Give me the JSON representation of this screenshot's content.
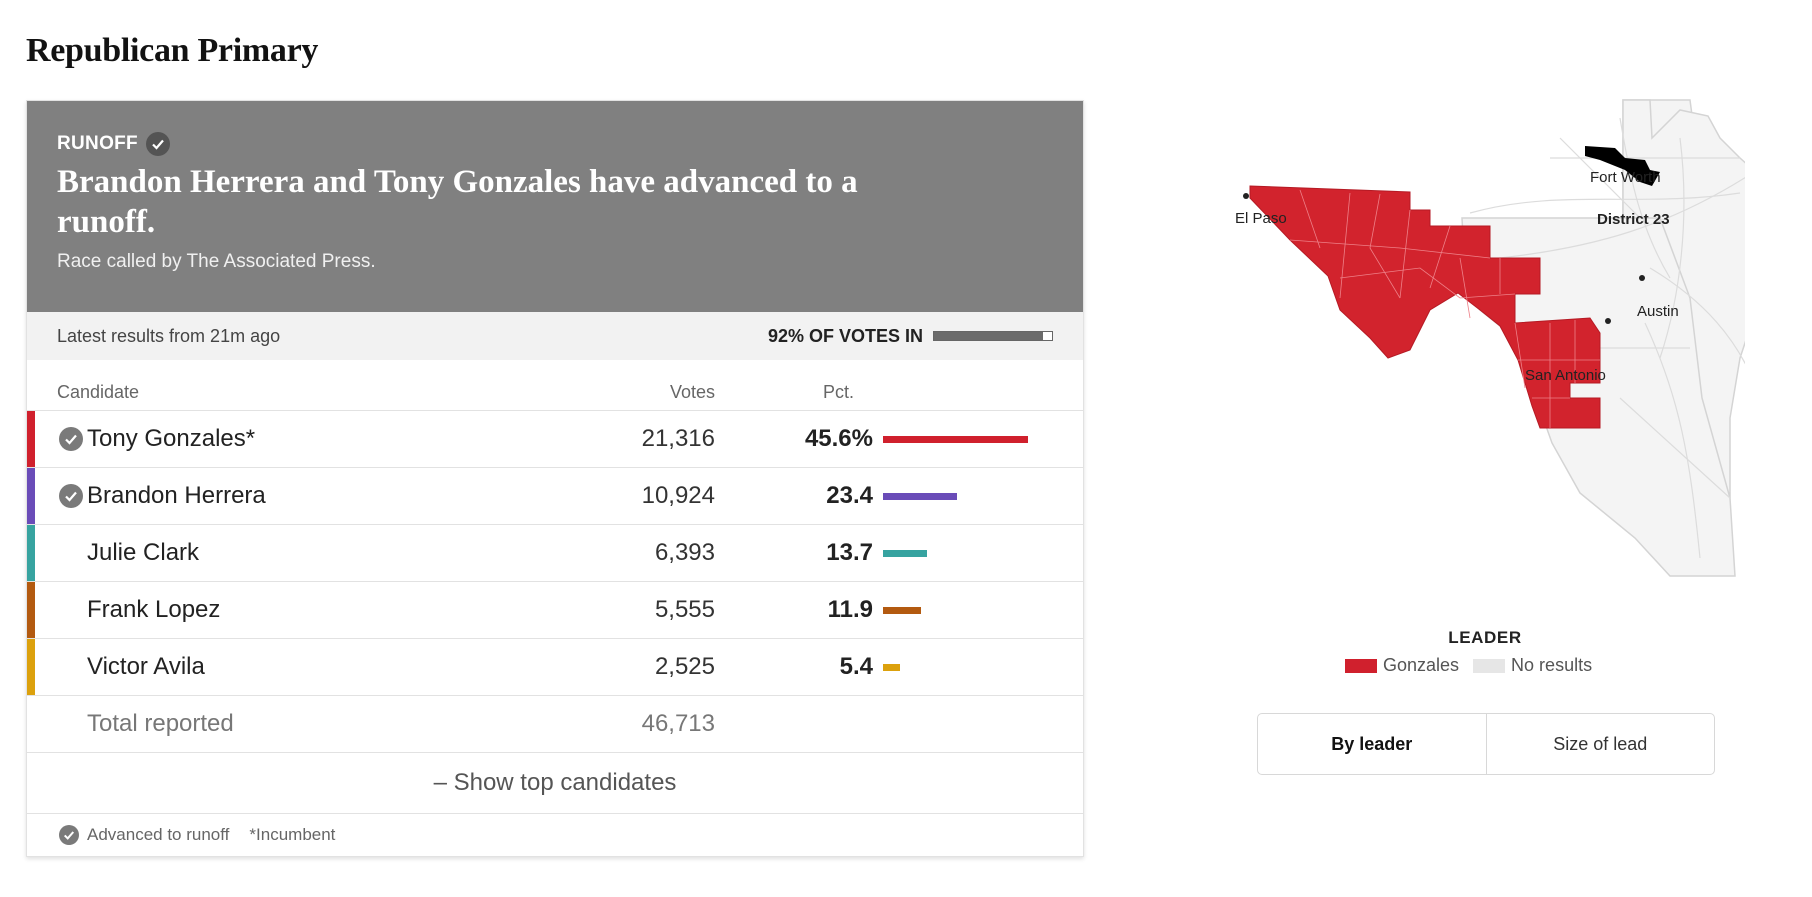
{
  "page_title": "Republican Primary",
  "banner": {
    "tag": "RUNOFF",
    "headline": "Brandon Herrera and Tony Gonzales have advanced to a runoff.",
    "subtext": "Race called by The Associated Press."
  },
  "status": {
    "latest": "Latest results from 21m ago",
    "votes_in_label": "92% OF VOTES IN",
    "votes_in_fraction": 0.92
  },
  "table": {
    "headers": {
      "candidate": "Candidate",
      "votes": "Votes",
      "pct": "Pct."
    },
    "rows": [
      {
        "name": "Tony Gonzales*",
        "votes": "21,316",
        "pct": "45.6%",
        "pct_value": 45.6,
        "color": "#d0202d",
        "advanced": true
      },
      {
        "name": "Brandon Herrera",
        "votes": "10,924",
        "pct": "23.4",
        "pct_value": 23.4,
        "color": "#6a4cb8",
        "advanced": true
      },
      {
        "name": "Julie Clark",
        "votes": "6,393",
        "pct": "13.7",
        "pct_value": 13.7,
        "color": "#37a3a0",
        "advanced": false
      },
      {
        "name": "Frank Lopez",
        "votes": "5,555",
        "pct": "11.9",
        "pct_value": 11.9,
        "color": "#b35a10",
        "advanced": false
      },
      {
        "name": "Victor Avila",
        "votes": "2,525",
        "pct": "5.4",
        "pct_value": 5.4,
        "color": "#dca10d",
        "advanced": false
      }
    ],
    "total_label": "Total reported",
    "total_votes": "46,713"
  },
  "show_top_label": "– Show top candidates",
  "footer": {
    "advanced_label": "Advanced to runoff",
    "incumbent_label": "*Incumbent"
  },
  "map": {
    "labels": {
      "el_paso": "El Paso",
      "san_antonio": "San Antonio",
      "austin": "Austin",
      "fort_worth": "Fort Worth",
      "district": "District 23"
    }
  },
  "legend": {
    "title": "LEADER",
    "items": [
      {
        "label": "Gonzales",
        "color": "#d0202d"
      },
      {
        "label": "No results",
        "color": "#e6e6e6"
      }
    ]
  },
  "toggle": {
    "by_leader": "By leader",
    "size_of_lead": "Size of lead",
    "active": "by_leader"
  }
}
